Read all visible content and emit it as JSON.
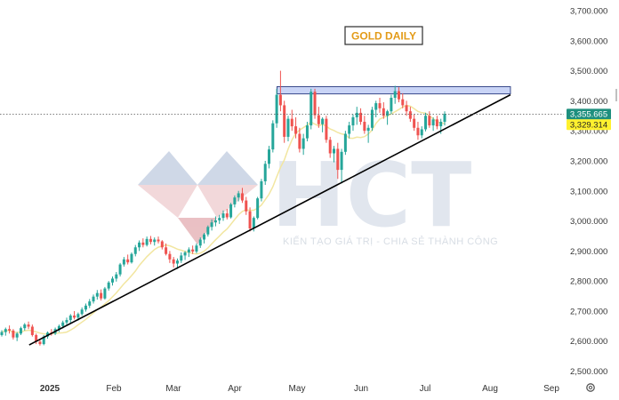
{
  "colors": {
    "up": "#26a69a",
    "down": "#ef5350",
    "ma": "#f2e6a0",
    "trendline": "#000000",
    "resistance_fill": "#c9d4f6",
    "resistance_stroke": "#3a4a8c",
    "title_text": "#e39b18",
    "title_border": "#2c2c2c",
    "last_price_bg": "#1e8f7e",
    "ma_tag_bg": "#fff12e",
    "watermark": "#dfe6ee"
  },
  "watermark": {
    "brand": "HCT",
    "slogan": "KIẾN TẠO GIÁ TRỊ - CHIA SẺ THÀNH CÔNG"
  },
  "chart_data": {
    "type": "candlestick",
    "title": "GOLD DAILY",
    "timeframe": "daily",
    "x_labels": [
      "2025",
      "Feb",
      "Mar",
      "Apr",
      "May",
      "Jun",
      "Jul",
      "Aug",
      "Sep"
    ],
    "y_ticks": [
      "3,700.000",
      "3,600.000",
      "3,500.000",
      "3,400.000",
      "3,300.000",
      "3,200.000",
      "3,100.000",
      "3,000.000",
      "2,900.000",
      "2,800.000",
      "2,700.000",
      "2,600.000",
      "2,500.000"
    ],
    "ylim": [
      2500,
      3700
    ],
    "last_price": 3355.665,
    "last_price_label": "3,355.665",
    "moving_average": {
      "value": 3329.314,
      "label": "3,329.314"
    },
    "resistance_zone": {
      "from": 3423,
      "to": 3447,
      "start": "2025-04-21",
      "end": "2025-08-12"
    },
    "trendline": {
      "start": {
        "date": "2024-12-22",
        "price": 2587
      },
      "end": {
        "date": "2025-08-12",
        "price": 3420
      }
    },
    "series": [
      {
        "values": [
          [
            2620,
            2636,
            2615,
            2630
          ],
          [
            2630,
            2645,
            2618,
            2640
          ],
          [
            2640,
            2652,
            2625,
            2635
          ],
          [
            2635,
            2640,
            2605,
            2612
          ],
          [
            2612,
            2630,
            2600,
            2625
          ],
          [
            2625,
            2648,
            2620,
            2643
          ],
          [
            2643,
            2660,
            2635,
            2655
          ],
          [
            2655,
            2665,
            2640,
            2648
          ],
          [
            2648,
            2655,
            2615,
            2620
          ],
          [
            2620,
            2625,
            2590,
            2598
          ],
          [
            2598,
            2608,
            2585,
            2590
          ],
          [
            2590,
            2620,
            2586,
            2615
          ],
          [
            2615,
            2632,
            2608,
            2628
          ],
          [
            2628,
            2640,
            2618,
            2625
          ],
          [
            2625,
            2645,
            2620,
            2640
          ],
          [
            2640,
            2655,
            2630,
            2650
          ],
          [
            2650,
            2668,
            2642,
            2662
          ],
          [
            2662,
            2678,
            2655,
            2670
          ],
          [
            2670,
            2690,
            2660,
            2685
          ],
          [
            2685,
            2700,
            2672,
            2678
          ],
          [
            2678,
            2695,
            2668,
            2690
          ],
          [
            2690,
            2712,
            2684,
            2705
          ],
          [
            2705,
            2725,
            2698,
            2718
          ],
          [
            2718,
            2740,
            2710,
            2732
          ],
          [
            2732,
            2755,
            2725,
            2748
          ],
          [
            2748,
            2770,
            2738,
            2760
          ],
          [
            2760,
            2772,
            2735,
            2742
          ],
          [
            2742,
            2780,
            2738,
            2775
          ],
          [
            2775,
            2800,
            2768,
            2795
          ],
          [
            2795,
            2815,
            2785,
            2808
          ],
          [
            2808,
            2830,
            2798,
            2822
          ],
          [
            2822,
            2860,
            2815,
            2855
          ],
          [
            2855,
            2880,
            2848,
            2872
          ],
          [
            2872,
            2888,
            2855,
            2862
          ],
          [
            2862,
            2895,
            2858,
            2890
          ],
          [
            2890,
            2920,
            2882,
            2912
          ],
          [
            2912,
            2935,
            2900,
            2928
          ],
          [
            2928,
            2942,
            2912,
            2920
          ],
          [
            2920,
            2948,
            2915,
            2940
          ],
          [
            2940,
            2950,
            2922,
            2930
          ],
          [
            2930,
            2945,
            2918,
            2938
          ],
          [
            2938,
            2948,
            2925,
            2932
          ],
          [
            2932,
            2936,
            2905,
            2912
          ],
          [
            2912,
            2925,
            2885,
            2890
          ],
          [
            2890,
            2900,
            2860,
            2872
          ],
          [
            2872,
            2880,
            2845,
            2858
          ],
          [
            2858,
            2875,
            2840,
            2868
          ],
          [
            2868,
            2895,
            2860,
            2885
          ],
          [
            2885,
            2900,
            2870,
            2895
          ],
          [
            2895,
            2912,
            2880,
            2905
          ],
          [
            2905,
            2918,
            2890,
            2898
          ],
          [
            2898,
            2925,
            2892,
            2918
          ],
          [
            2918,
            2945,
            2910,
            2938
          ],
          [
            2938,
            2960,
            2925,
            2955
          ],
          [
            2955,
            2985,
            2948,
            2980
          ],
          [
            2980,
            3005,
            2968,
            2995
          ],
          [
            2995,
            3015,
            2982,
            3002
          ],
          [
            3002,
            3020,
            2990,
            3010
          ],
          [
            3010,
            3035,
            3000,
            3025
          ],
          [
            3025,
            3040,
            3005,
            3012
          ],
          [
            3012,
            3060,
            3008,
            3055
          ],
          [
            3055,
            3085,
            3045,
            3078
          ],
          [
            3078,
            3100,
            3065,
            3092
          ],
          [
            3092,
            3110,
            3060,
            3068
          ],
          [
            3068,
            3080,
            3020,
            3032
          ],
          [
            3032,
            3045,
            2965,
            2975
          ],
          [
            2975,
            3015,
            2965,
            3010
          ],
          [
            3010,
            3080,
            3005,
            3075
          ],
          [
            3075,
            3140,
            3065,
            3132
          ],
          [
            3132,
            3200,
            3120,
            3190
          ],
          [
            3190,
            3250,
            3175,
            3238
          ],
          [
            3238,
            3335,
            3228,
            3325
          ],
          [
            3325,
            3440,
            3310,
            3420
          ],
          [
            3420,
            3500,
            3365,
            3385
          ],
          [
            3385,
            3400,
            3260,
            3280
          ],
          [
            3280,
            3350,
            3265,
            3340
          ],
          [
            3340,
            3370,
            3300,
            3315
          ],
          [
            3315,
            3345,
            3275,
            3290
          ],
          [
            3290,
            3310,
            3228,
            3240
          ],
          [
            3240,
            3290,
            3220,
            3275
          ],
          [
            3275,
            3330,
            3265,
            3318
          ],
          [
            3318,
            3440,
            3305,
            3430
          ],
          [
            3430,
            3440,
            3340,
            3352
          ],
          [
            3352,
            3380,
            3310,
            3322
          ],
          [
            3322,
            3345,
            3295,
            3340
          ],
          [
            3340,
            3350,
            3260,
            3270
          ],
          [
            3270,
            3280,
            3210,
            3225
          ],
          [
            3225,
            3250,
            3195,
            3240
          ],
          [
            3240,
            3260,
            3140,
            3170
          ],
          [
            3170,
            3240,
            3125,
            3230
          ],
          [
            3230,
            3300,
            3220,
            3290
          ],
          [
            3290,
            3330,
            3275,
            3318
          ],
          [
            3318,
            3355,
            3300,
            3345
          ],
          [
            3345,
            3380,
            3320,
            3360
          ],
          [
            3360,
            3375,
            3320,
            3330
          ],
          [
            3330,
            3350,
            3290,
            3300
          ],
          [
            3300,
            3320,
            3260,
            3310
          ],
          [
            3310,
            3380,
            3300,
            3370
          ],
          [
            3370,
            3400,
            3345,
            3392
          ],
          [
            3392,
            3410,
            3360,
            3375
          ],
          [
            3375,
            3395,
            3340,
            3350
          ],
          [
            3350,
            3370,
            3320,
            3365
          ],
          [
            3365,
            3420,
            3355,
            3410
          ],
          [
            3410,
            3450,
            3390,
            3432
          ],
          [
            3432,
            3445,
            3395,
            3405
          ],
          [
            3405,
            3425,
            3375,
            3385
          ],
          [
            3385,
            3400,
            3350,
            3365
          ],
          [
            3365,
            3380,
            3330,
            3340
          ],
          [
            3340,
            3355,
            3300,
            3310
          ],
          [
            3310,
            3330,
            3270,
            3285
          ],
          [
            3285,
            3315,
            3275,
            3305
          ],
          [
            3305,
            3360,
            3298,
            3350
          ],
          [
            3350,
            3365,
            3310,
            3318
          ],
          [
            3318,
            3345,
            3300,
            3338
          ],
          [
            3338,
            3350,
            3305,
            3315
          ],
          [
            3315,
            3340,
            3290,
            3330
          ],
          [
            3330,
            3365,
            3318,
            3356
          ]
        ]
      }
    ]
  }
}
